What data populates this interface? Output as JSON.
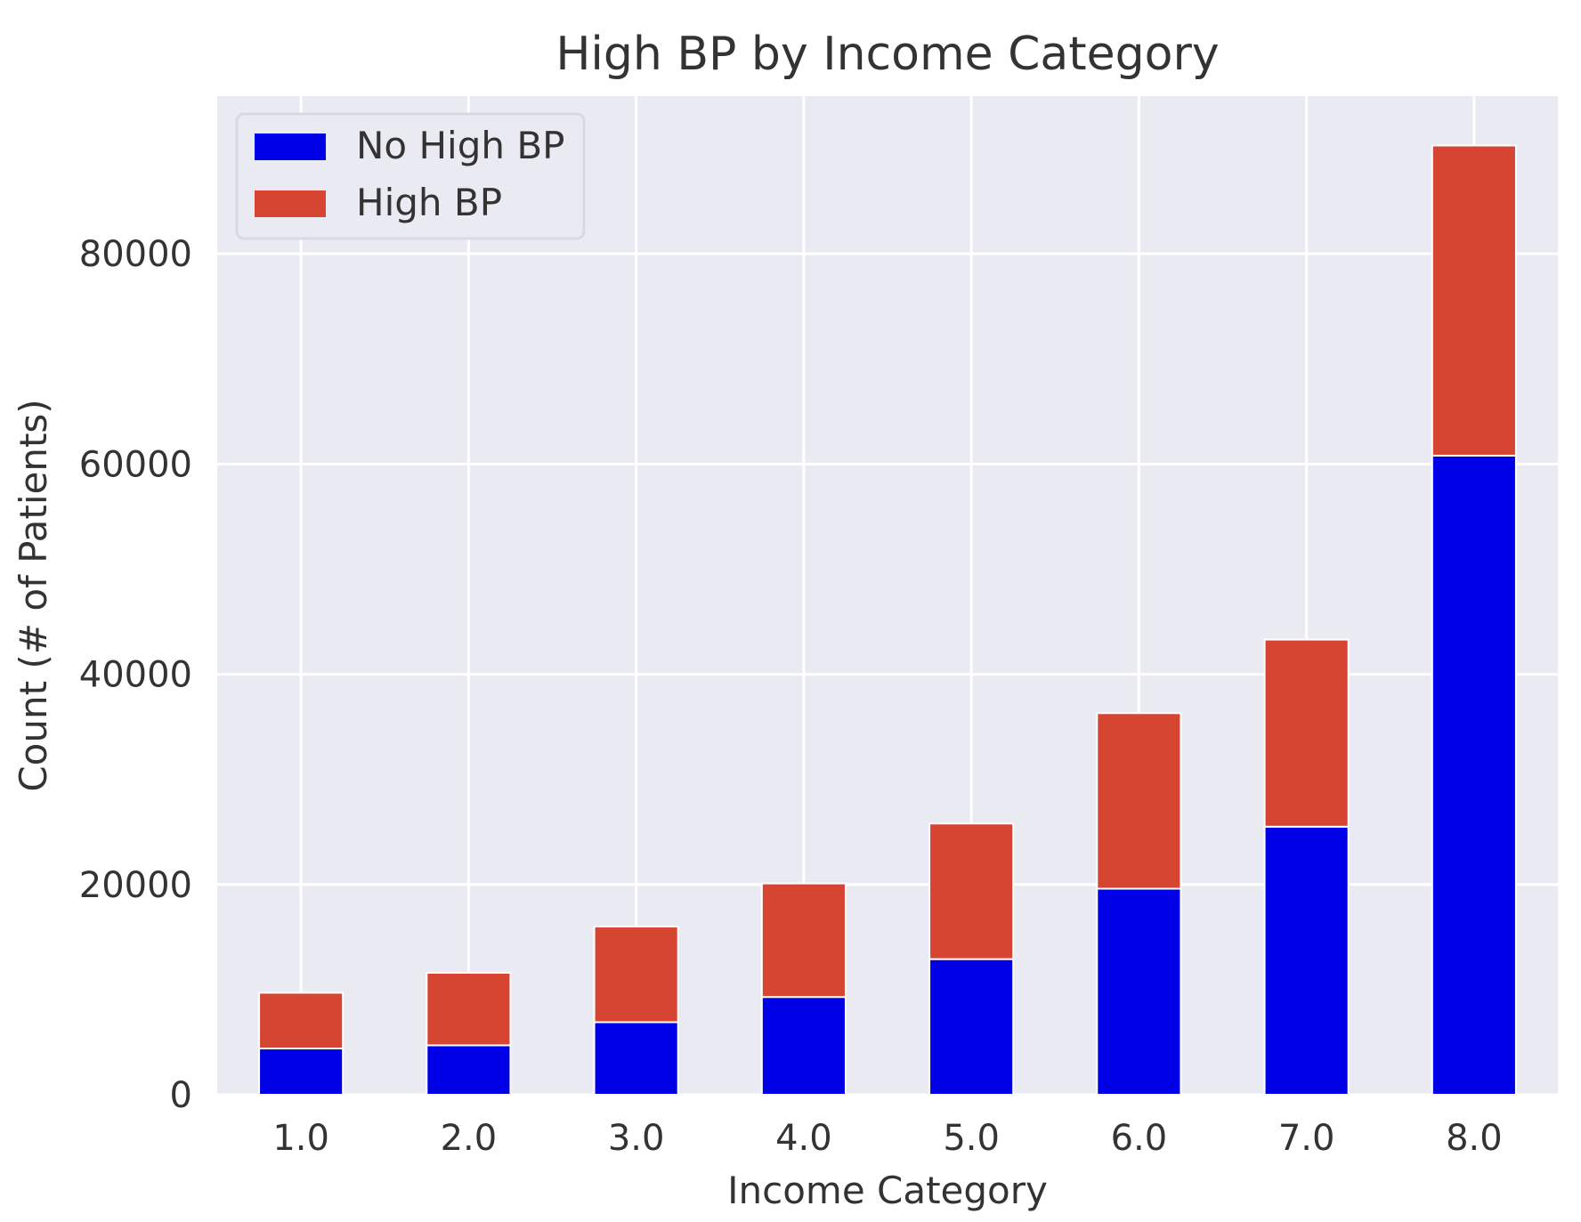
{
  "chart_data": {
    "type": "bar",
    "stacked": true,
    "title": "High BP by Income Category",
    "xlabel": "Income Category",
    "ylabel": "Count (# of Patients)",
    "categories": [
      "1.0",
      "2.0",
      "3.0",
      "4.0",
      "5.0",
      "6.0",
      "7.0",
      "8.0"
    ],
    "series": [
      {
        "name": "No High BP",
        "color": "#0000e6",
        "values": [
          4400,
          4700,
          6900,
          9300,
          12900,
          19600,
          25500,
          60800
        ]
      },
      {
        "name": "High BP",
        "color": "#d64532",
        "values": [
          5300,
          6900,
          9100,
          10800,
          12900,
          16700,
          17800,
          29500
        ]
      }
    ],
    "ylim": [
      0,
      95000
    ],
    "yticks": [
      0,
      20000,
      40000,
      60000,
      80000
    ],
    "ytick_labels": [
      "0",
      "20000",
      "40000",
      "60000",
      "80000"
    ],
    "grid": true,
    "legend_position": "upper-left",
    "background": "#eaeaf2"
  }
}
